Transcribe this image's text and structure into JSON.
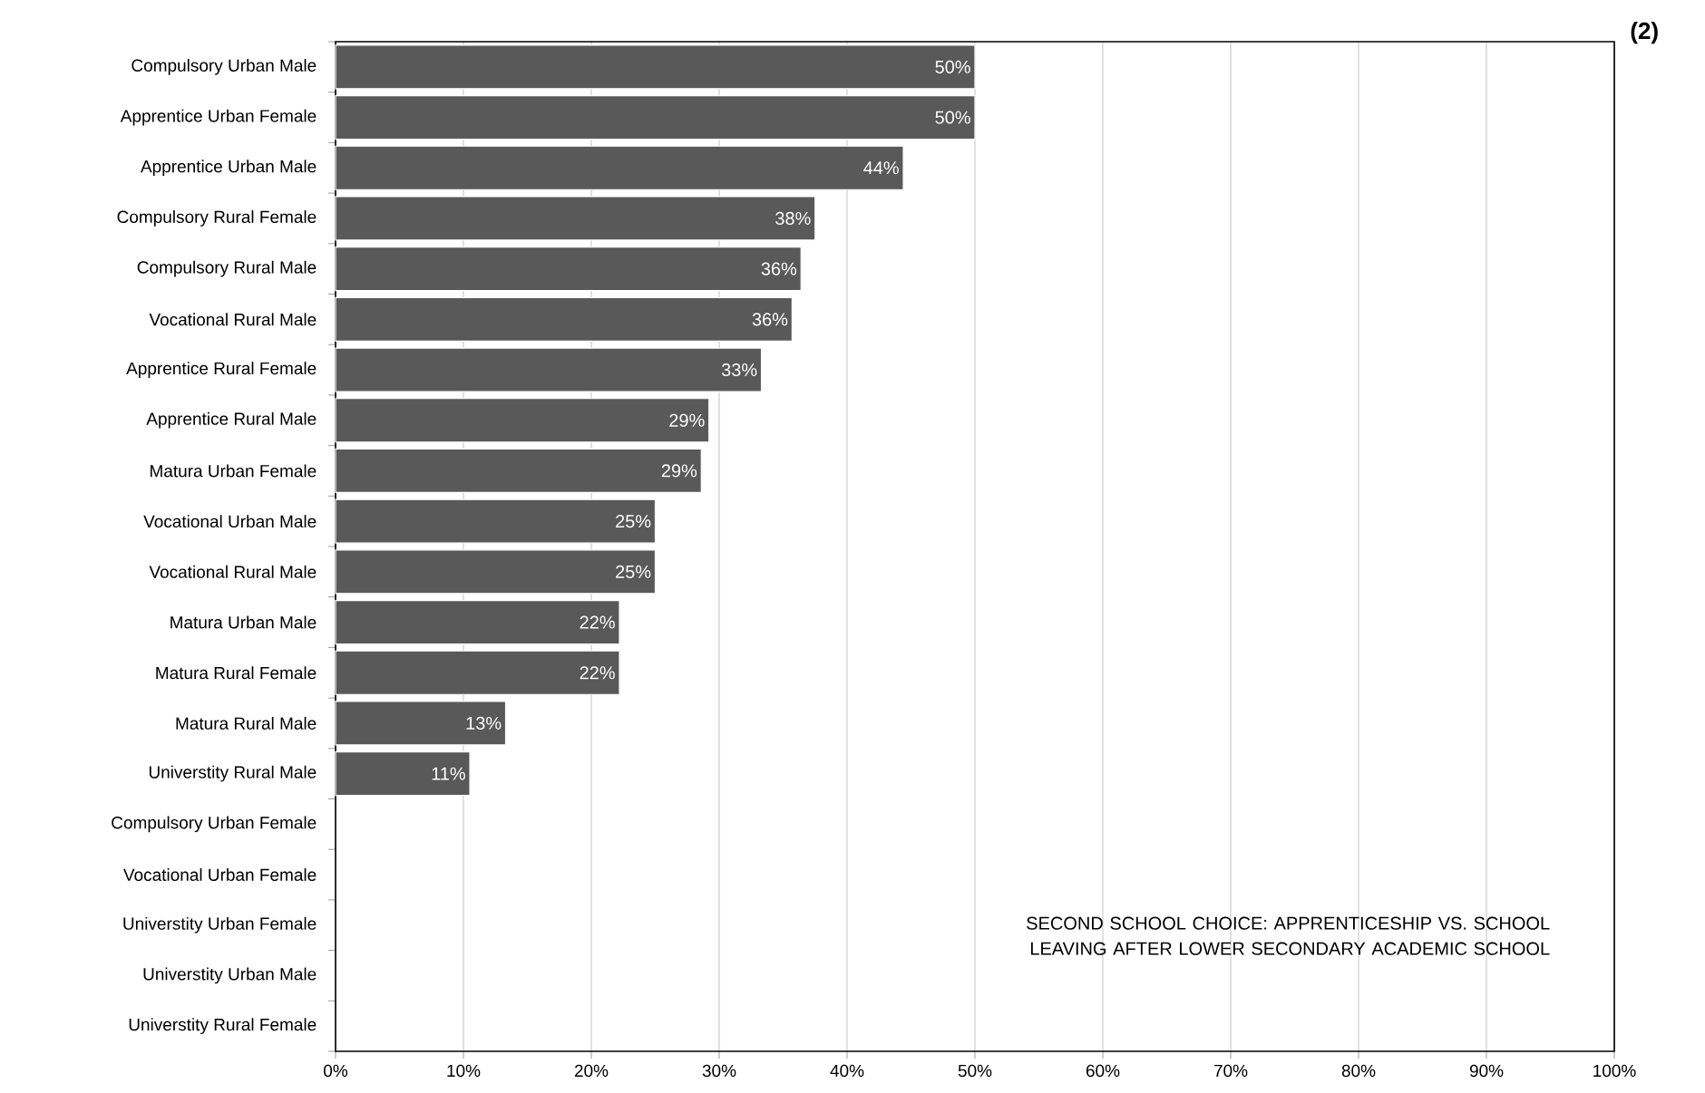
{
  "chart_data": {
    "type": "bar",
    "orientation": "horizontal",
    "title": "(2)",
    "categories": [
      "Compulsory Urban Male",
      "Apprentice Urban Female",
      "Apprentice Urban Male",
      "Compulsory Rural Female",
      "Compulsory Rural Male",
      "Vocational Rural Male",
      "Apprentice Rural Female",
      "Apprentice Rural Male",
      "Matura Urban Female",
      "Vocational Urban Male",
      "Vocational Rural Male",
      "Matura Urban Male",
      "Matura Rural Female",
      "Matura Rural Male",
      "Universtity Rural Male",
      "Compulsory Urban Female",
      "Vocational Urban Female",
      "Universtity Urban Female",
      "Universtity Urban Male",
      "Universtity Rural Female"
    ],
    "values": [
      50,
      50,
      44.4,
      37.5,
      36.4,
      35.7,
      33.3,
      29.2,
      28.6,
      25,
      25,
      22.2,
      22.2,
      13.3,
      10.5,
      null,
      null,
      null,
      null,
      null
    ],
    "value_labels": [
      "50%",
      "50%",
      "44%",
      "38%",
      "36%",
      "36%",
      "33%",
      "29%",
      "29%",
      "25%",
      "25%",
      "22%",
      "22%",
      "13%",
      "11%",
      null,
      null,
      null,
      null,
      null
    ],
    "color": "#595959",
    "xlim": [
      0,
      100
    ],
    "xticks": [
      {
        "value": 0,
        "label": "0%"
      },
      {
        "value": 10,
        "label": "10%"
      },
      {
        "value": 20,
        "label": "20%"
      },
      {
        "value": 30,
        "label": "30%"
      },
      {
        "value": 40,
        "label": "40%"
      },
      {
        "value": 50,
        "label": "50%"
      },
      {
        "value": 60,
        "label": "60%"
      },
      {
        "value": 70,
        "label": "70%"
      },
      {
        "value": 80,
        "label": "80%"
      },
      {
        "value": 90,
        "label": "90%"
      },
      {
        "value": 100,
        "label": "100%"
      }
    ],
    "grid": "x",
    "annotations": [
      "SECOND SCHOOL CHOICE: APPRENTICESHIP VS. SCHOOL LEAVING AFTER LOWER SECONDARY ACADEMIC SCHOOL"
    ]
  }
}
